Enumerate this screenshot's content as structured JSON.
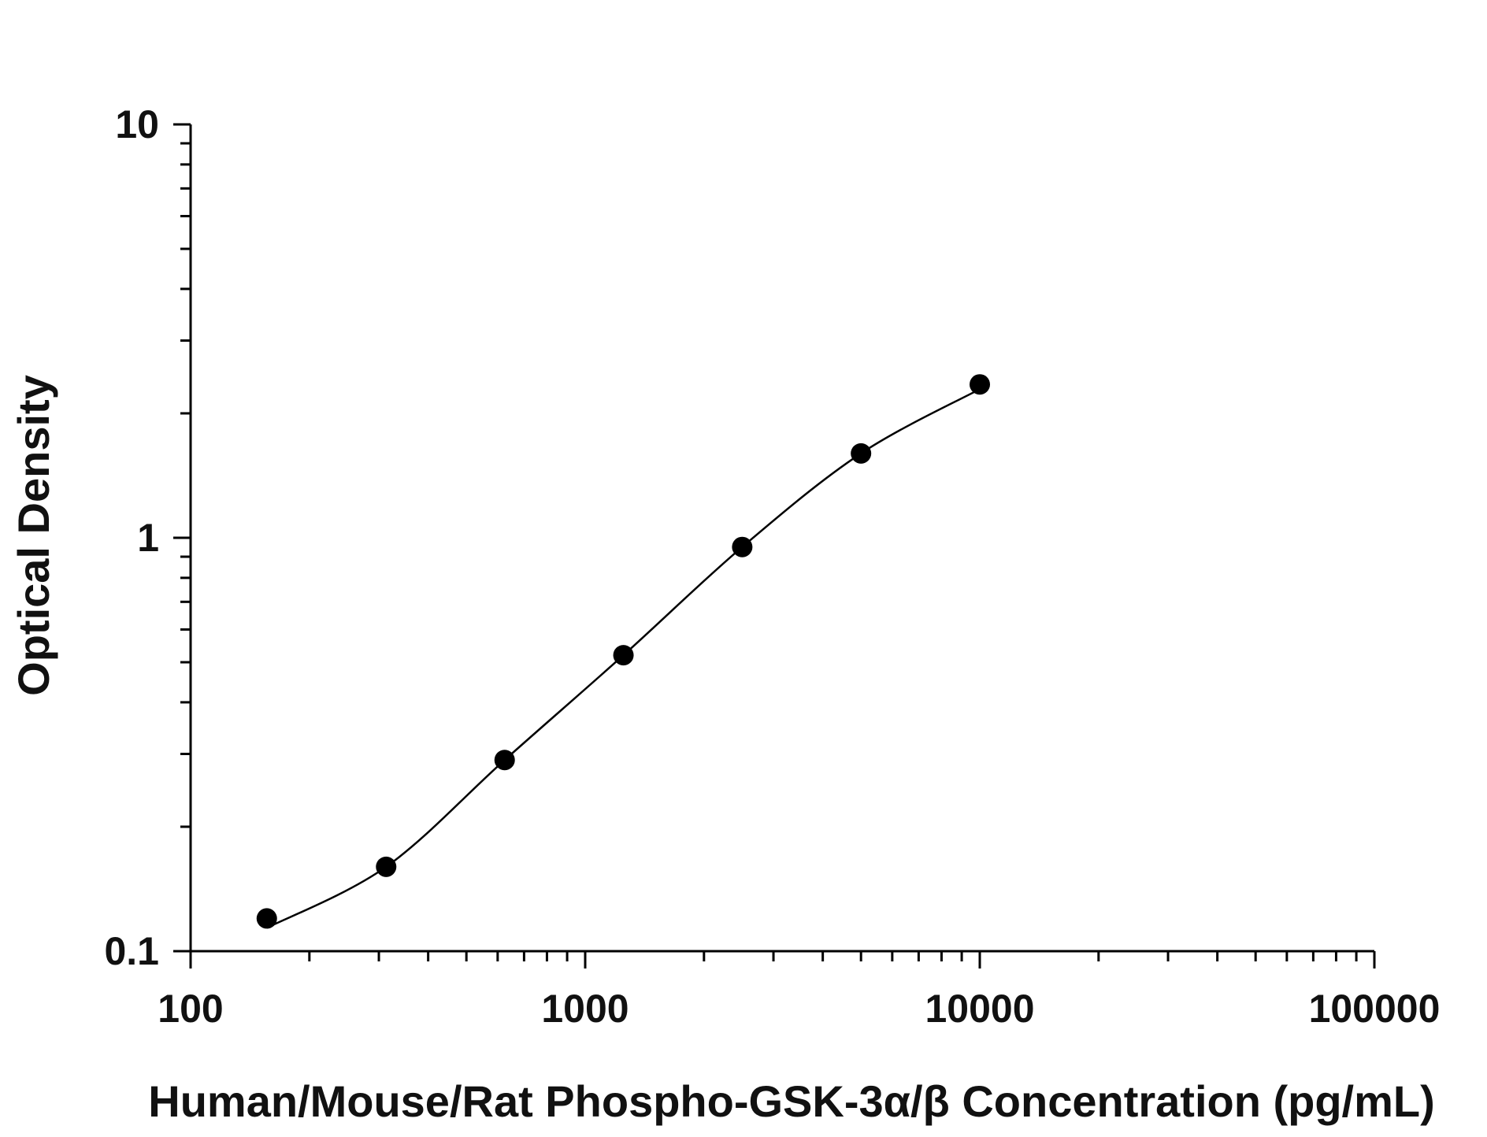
{
  "chart_data": {
    "type": "scatter",
    "title": "",
    "xlabel": "Human/Mouse/Rat Phospho-GSK-3α/β Concentration (pg/mL)",
    "ylabel": "Optical Density",
    "x_scale": "log",
    "y_scale": "log",
    "xlim": [
      100,
      100000
    ],
    "ylim": [
      0.1,
      10
    ],
    "x_ticks": [
      "100",
      "1000",
      "10000",
      "100000"
    ],
    "y_ticks": [
      "0.1",
      "1",
      "10"
    ],
    "grid": false,
    "legend": "none",
    "series": [
      {
        "points": [
          {
            "x": 156,
            "y": 0.12
          },
          {
            "x": 313,
            "y": 0.16
          },
          {
            "x": 625,
            "y": 0.29
          },
          {
            "x": 1250,
            "y": 0.52
          },
          {
            "x": 2500,
            "y": 0.95
          },
          {
            "x": 5000,
            "y": 1.6
          },
          {
            "x": 10000,
            "y": 2.35
          }
        ],
        "fit": "four-parameter logistic curve",
        "marker_color": "#000000"
      }
    ]
  }
}
